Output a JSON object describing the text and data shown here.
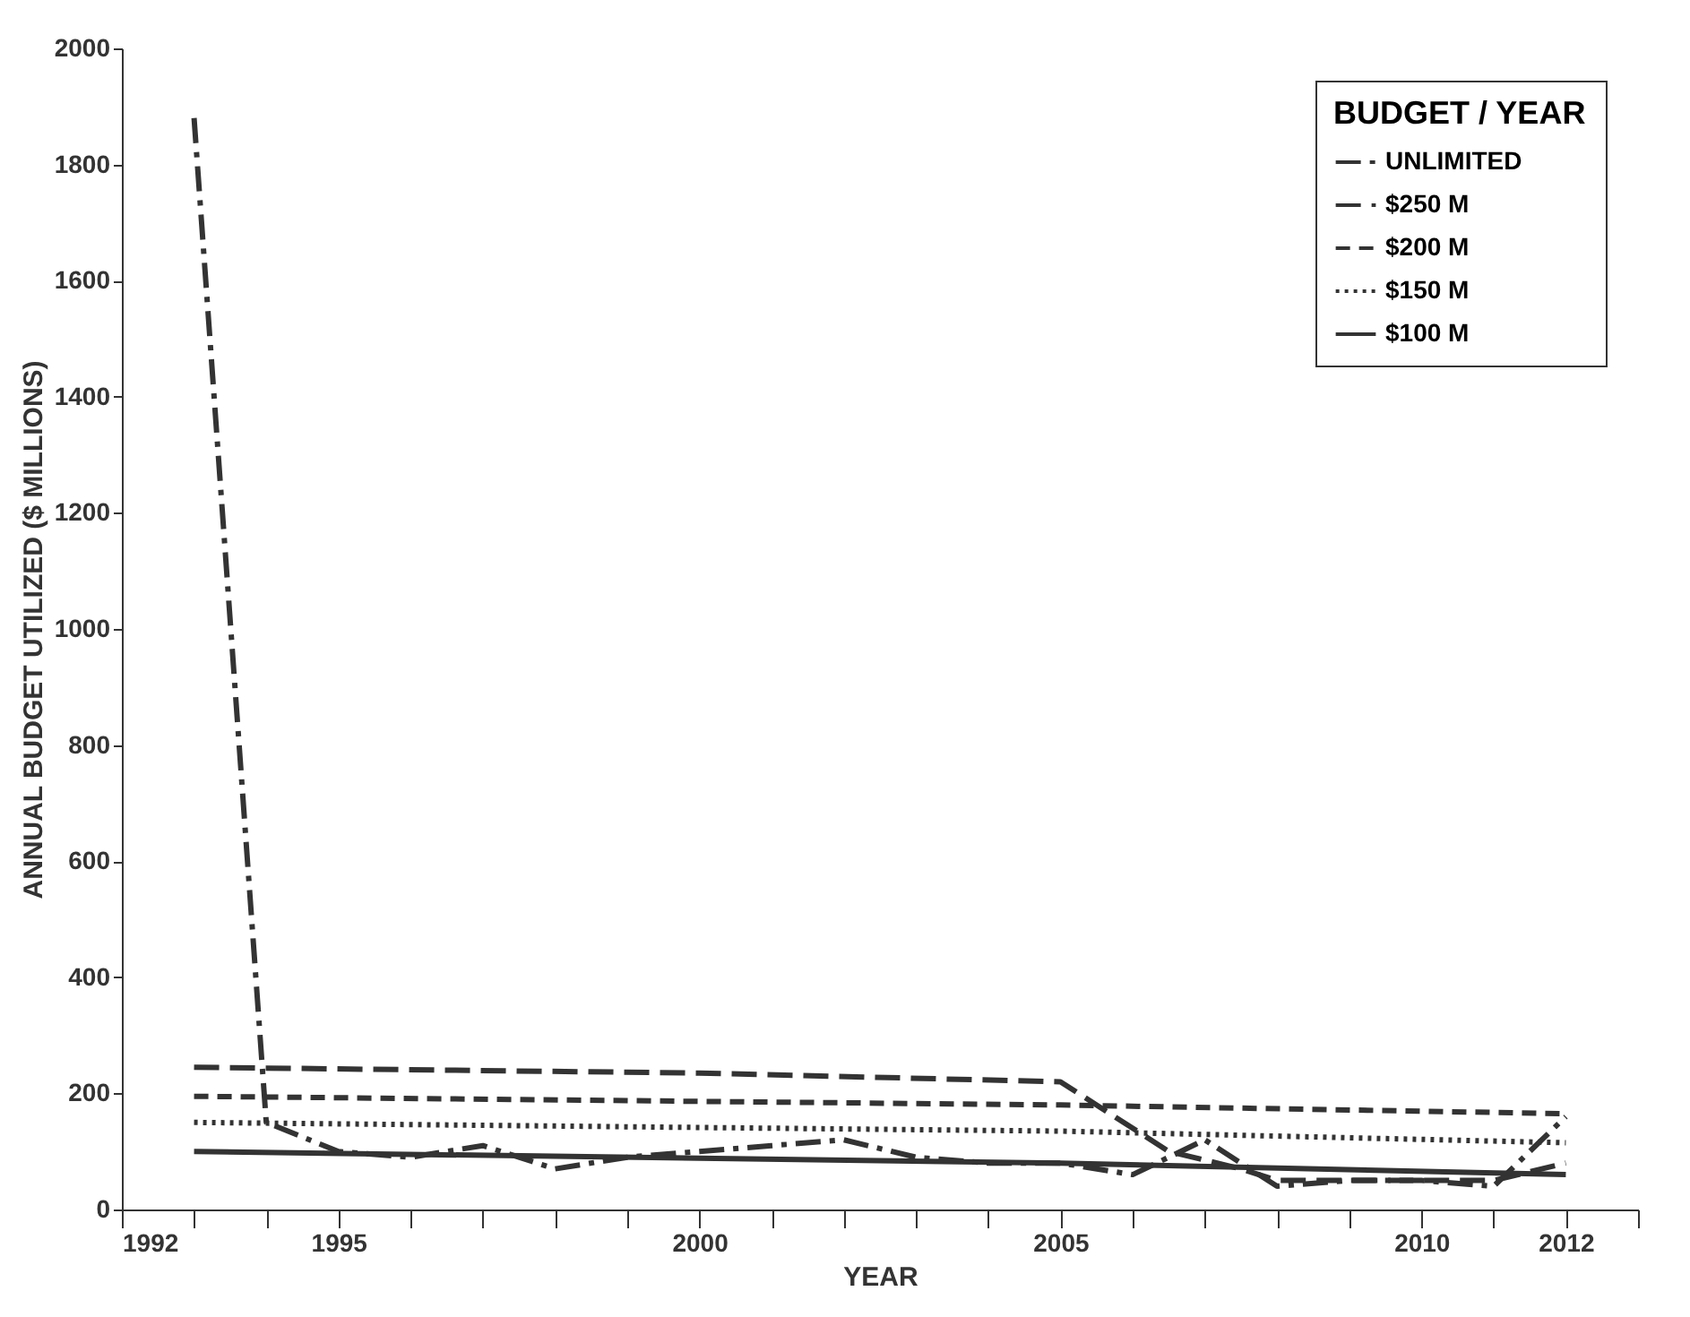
{
  "chart_data": {
    "type": "line",
    "xlabel": "YEAR",
    "ylabel": "ANNUAL BUDGET UTILIZED ($ MILLIONS)",
    "legend_title": "BUDGET / YEAR",
    "legend": "top right",
    "grid": false,
    "xlim": [
      1992,
      2013
    ],
    "xticks": [
      1992,
      {
        "value": 1993,
        "label": null
      },
      {
        "value": 1994,
        "label": null
      },
      1995,
      {
        "value": 1996,
        "label": null
      },
      {
        "value": 1997,
        "label": null
      },
      {
        "value": 1998,
        "label": null
      },
      {
        "value": 1999,
        "label": null
      },
      2000,
      {
        "value": 2001,
        "label": null
      },
      {
        "value": 2002,
        "label": null
      },
      {
        "value": 2003,
        "label": null
      },
      {
        "value": 2004,
        "label": null
      },
      2005,
      {
        "value": 2006,
        "label": null
      },
      {
        "value": 2007,
        "label": null
      },
      {
        "value": 2008,
        "label": null
      },
      {
        "value": 2009,
        "label": null
      },
      2010,
      {
        "value": 2011,
        "label": null
      },
      2012,
      {
        "value": 2013,
        "label": null
      }
    ],
    "ylim": [
      0,
      2000
    ],
    "yticks": [
      0,
      200,
      400,
      600,
      800,
      1000,
      1200,
      1400,
      1600,
      1800,
      2000
    ],
    "series": [
      {
        "name": "UNLIMITED",
        "color": "#333333",
        "line_style": "dashdot",
        "x": [
          1993,
          1994,
          1995,
          1996,
          1997,
          1998,
          1999,
          2000,
          2001,
          2002,
          2003,
          2004,
          2005,
          2006,
          2007,
          2008,
          2009,
          2010,
          2011,
          2012
        ],
        "values": [
          1880,
          150,
          100,
          90,
          110,
          70,
          90,
          100,
          110,
          120,
          90,
          80,
          80,
          60,
          120,
          40,
          50,
          50,
          40,
          160
        ]
      },
      {
        "name": "$250 M",
        "color": "#333333",
        "line_style": "longdash",
        "x": [
          1993,
          2000,
          2005,
          2006.5,
          2007.5,
          2008,
          2011,
          2012
        ],
        "values": [
          245,
          235,
          220,
          100,
          70,
          50,
          50,
          80
        ]
      },
      {
        "name": "$200 M",
        "color": "#333333",
        "line_style": "dashed",
        "x": [
          1993,
          2005,
          2012
        ],
        "values": [
          195,
          180,
          165
        ]
      },
      {
        "name": "$150 M",
        "color": "#333333",
        "line_style": "dotted",
        "x": [
          1993,
          2005,
          2012
        ],
        "values": [
          150,
          135,
          115
        ]
      },
      {
        "name": "$100 M",
        "color": "#333333",
        "line_style": "solid",
        "x": [
          1993,
          2005,
          2012
        ],
        "values": [
          100,
          80,
          60
        ]
      }
    ]
  }
}
